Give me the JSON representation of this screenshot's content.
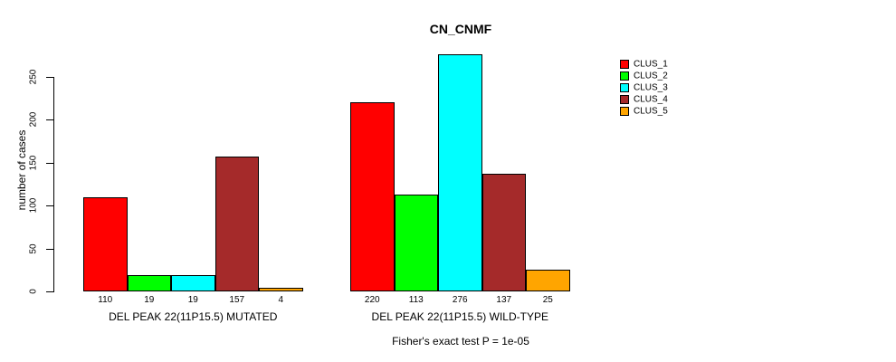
{
  "chart_data": {
    "type": "bar",
    "title": "CN_CNMF",
    "ylabel": "number of cases",
    "xlabel": "",
    "ylim": [
      0,
      250
    ],
    "yticks": [
      0,
      50,
      100,
      150,
      200,
      250
    ],
    "grid": false,
    "legend_position": "right",
    "categories": [
      "DEL PEAK 22(11P15.5) MUTATED",
      "DEL PEAK 22(11P15.5) WILD-TYPE"
    ],
    "series": [
      {
        "name": "CLUS_1",
        "color": "#ff0000",
        "values": [
          110,
          220
        ]
      },
      {
        "name": "CLUS_2",
        "color": "#00ff00",
        "values": [
          19,
          113
        ]
      },
      {
        "name": "CLUS_3",
        "color": "#00ffff",
        "values": [
          19,
          276
        ]
      },
      {
        "name": "CLUS_4",
        "color": "#a52a2a",
        "values": [
          157,
          137
        ]
      },
      {
        "name": "CLUS_5",
        "color": "#ffa500",
        "values": [
          4,
          25
        ]
      }
    ],
    "bar_value_labels": [
      [
        "110",
        "19",
        "19",
        "157",
        "4"
      ],
      [
        "220",
        "113",
        "276",
        "137",
        "25"
      ]
    ],
    "annotation": "Fisher's exact test P = 1e-05",
    "colors": {
      "background": "#ffffff",
      "axis": "#000000",
      "text": "#000000"
    }
  }
}
